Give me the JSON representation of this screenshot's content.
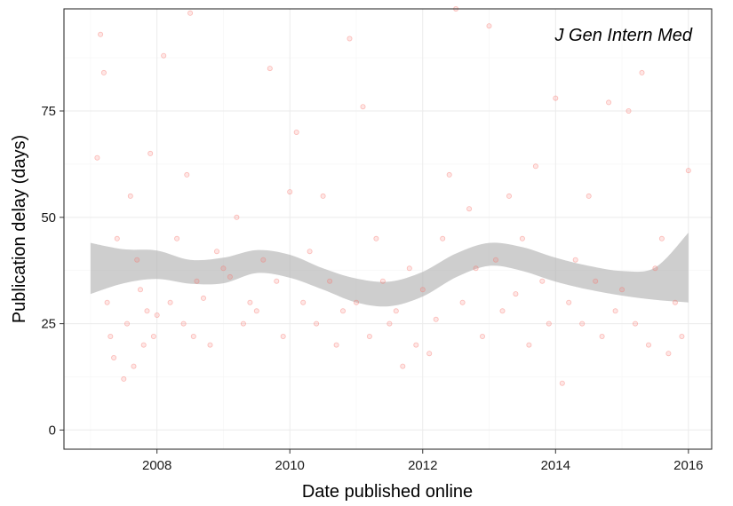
{
  "chart_data": {
    "type": "scatter",
    "title": "J Gen Intern Med",
    "xlabel": "Date published online",
    "ylabel": "Publication delay (days)",
    "xlim": [
      2006.6,
      2016.35
    ],
    "ylim": [
      -4.5,
      99
    ],
    "x_ticks": [
      2008,
      2010,
      2012,
      2014,
      2016
    ],
    "x_tick_labels": [
      "2008",
      "2010",
      "2012",
      "2014",
      "2016"
    ],
    "y_ticks": [
      0,
      25,
      50,
      75
    ],
    "y_tick_labels": [
      "0",
      "25",
      "50",
      "75"
    ],
    "grid": true,
    "legend": "none",
    "colors": {
      "points": "#f8766d",
      "band": "#b3b3b3",
      "grid_major": "#ebebeb",
      "grid_minor": "#f5f5f5",
      "panel_border": "#333333"
    },
    "series": [
      {
        "kind": "points",
        "x": [
          2007.1,
          2007.15,
          2007.2,
          2007.25,
          2007.3,
          2007.35,
          2007.4,
          2007.5,
          2007.55,
          2007.6,
          2007.65,
          2007.7,
          2007.75,
          2007.8,
          2007.85,
          2007.9,
          2007.95,
          2008.0,
          2008.1,
          2008.2,
          2008.3,
          2008.4,
          2008.45,
          2008.5,
          2008.55,
          2008.6,
          2008.7,
          2008.8,
          2008.9,
          2009.0,
          2009.1,
          2009.2,
          2009.3,
          2009.4,
          2009.5,
          2009.6,
          2009.7,
          2009.8,
          2009.9,
          2010.0,
          2010.1,
          2010.2,
          2010.3,
          2010.4,
          2010.5,
          2010.6,
          2010.7,
          2010.8,
          2010.9,
          2011.0,
          2011.1,
          2011.2,
          2011.3,
          2011.4,
          2011.5,
          2011.6,
          2011.7,
          2011.8,
          2011.9,
          2012.0,
          2012.1,
          2012.2,
          2012.3,
          2012.4,
          2012.5,
          2012.6,
          2012.7,
          2012.8,
          2012.9,
          2013.0,
          2013.1,
          2013.2,
          2013.3,
          2013.4,
          2013.5,
          2013.6,
          2013.7,
          2013.8,
          2013.9,
          2014.0,
          2014.1,
          2014.2,
          2014.3,
          2014.4,
          2014.5,
          2014.6,
          2014.7,
          2014.8,
          2014.9,
          2015.0,
          2015.1,
          2015.2,
          2015.3,
          2015.4,
          2015.5,
          2015.6,
          2015.7,
          2015.8,
          2015.9,
          2016.0
        ],
        "y": [
          64,
          93,
          84,
          30,
          22,
          17,
          45,
          12,
          25,
          55,
          15,
          40,
          33,
          20,
          28,
          65,
          22,
          27,
          88,
          30,
          45,
          25,
          60,
          98,
          22,
          35,
          31,
          20,
          42,
          38,
          36,
          50,
          25,
          30,
          28,
          40,
          85,
          35,
          22,
          56,
          70,
          30,
          42,
          25,
          55,
          35,
          20,
          28,
          92,
          30,
          76,
          22,
          45,
          35,
          25,
          28,
          15,
          38,
          20,
          33,
          18,
          26,
          45,
          60,
          99,
          30,
          52,
          38,
          22,
          95,
          40,
          28,
          55,
          32,
          45,
          20,
          62,
          35,
          25,
          78,
          11,
          30,
          40,
          25,
          55,
          35,
          22,
          77,
          28,
          33,
          75,
          25,
          84,
          20,
          38,
          45,
          18,
          30,
          22,
          61
        ]
      },
      {
        "kind": "smooth",
        "x": [
          2007.0,
          2007.5,
          2008.0,
          2008.5,
          2009.0,
          2009.5,
          2010.0,
          2010.5,
          2011.0,
          2011.5,
          2012.0,
          2012.5,
          2013.0,
          2013.5,
          2014.0,
          2014.5,
          2015.0,
          2015.5,
          2016.0
        ],
        "y": [
          38.0,
          38.5,
          38.8,
          37.2,
          37.5,
          39.6,
          38.5,
          35.5,
          32.8,
          32.0,
          34.3,
          38.7,
          41.3,
          40.2,
          37.7,
          35.8,
          34.5,
          34.4,
          38.2
        ],
        "upper": [
          44.0,
          42.5,
          42.2,
          40.0,
          40.5,
          42.3,
          41.2,
          38.0,
          35.6,
          34.9,
          37.2,
          41.5,
          44.0,
          43.0,
          40.5,
          38.6,
          37.4,
          38.2,
          46.4
        ],
        "lower": [
          32.0,
          34.5,
          35.5,
          34.4,
          34.5,
          36.9,
          35.8,
          33.0,
          30.0,
          29.1,
          31.4,
          35.9,
          38.6,
          37.4,
          34.9,
          33.0,
          31.6,
          30.6,
          30.0
        ]
      }
    ]
  }
}
